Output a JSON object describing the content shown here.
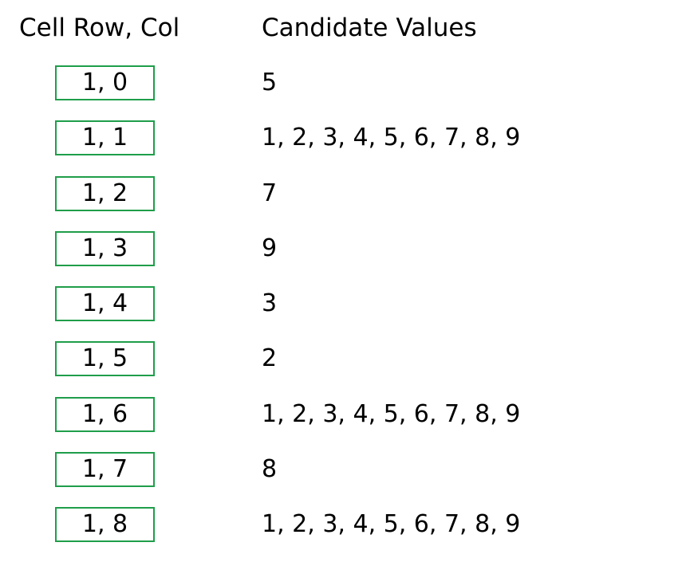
{
  "header": {
    "cell_label": "Cell Row, Col",
    "values_label": "Candidate Values"
  },
  "colors": {
    "cell_border": "#1f9e4a",
    "text": "#000000",
    "background": "#ffffff"
  },
  "rows": [
    {
      "cell": "1, 0",
      "candidates": "5"
    },
    {
      "cell": "1, 1",
      "candidates": "1, 2, 3, 4, 5, 6, 7, 8, 9"
    },
    {
      "cell": "1, 2",
      "candidates": "7"
    },
    {
      "cell": "1, 3",
      "candidates": "9"
    },
    {
      "cell": "1, 4",
      "candidates": "3"
    },
    {
      "cell": "1, 5",
      "candidates": "2"
    },
    {
      "cell": "1, 6",
      "candidates": "1, 2, 3, 4, 5, 6, 7, 8, 9"
    },
    {
      "cell": "1, 7",
      "candidates": "8"
    },
    {
      "cell": "1, 8",
      "candidates": "1, 2, 3, 4, 5, 6, 7, 8, 9"
    }
  ]
}
